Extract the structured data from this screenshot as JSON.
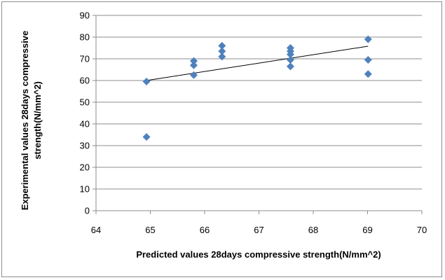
{
  "chart_data": {
    "type": "scatter",
    "xlabel": "Predicted values 28days compressive strength(N/mm^2)",
    "ylabel_line1": "Experimental values 28days compressive",
    "ylabel_line2": "strength(N/mm^2)",
    "xlim": [
      64,
      70
    ],
    "ylim": [
      0,
      90
    ],
    "x_ticks": [
      "64",
      "65",
      "66",
      "67",
      "68",
      "69",
      "70"
    ],
    "y_ticks": [
      "0",
      "10",
      "20",
      "30",
      "40",
      "50",
      "60",
      "70",
      "80",
      "90"
    ],
    "grid": "horizontal",
    "legend": "none",
    "marker_color": "#4F81BD",
    "trendline_color": "#000000",
    "points": [
      {
        "x": 64.93,
        "y": 59.5
      },
      {
        "x": 64.93,
        "y": 34
      },
      {
        "x": 65.8,
        "y": 69
      },
      {
        "x": 65.8,
        "y": 67
      },
      {
        "x": 65.8,
        "y": 62.5
      },
      {
        "x": 66.32,
        "y": 76
      },
      {
        "x": 66.32,
        "y": 73.5
      },
      {
        "x": 66.32,
        "y": 71
      },
      {
        "x": 67.58,
        "y": 75
      },
      {
        "x": 67.58,
        "y": 73.5
      },
      {
        "x": 67.58,
        "y": 72
      },
      {
        "x": 67.58,
        "y": 69.5
      },
      {
        "x": 67.58,
        "y": 66.5
      },
      {
        "x": 69.01,
        "y": 79
      },
      {
        "x": 69.01,
        "y": 69.5
      },
      {
        "x": 69.01,
        "y": 63
      }
    ],
    "trendline": [
      {
        "x": 64.93,
        "y": 60
      },
      {
        "x": 69.01,
        "y": 75.8
      }
    ]
  }
}
